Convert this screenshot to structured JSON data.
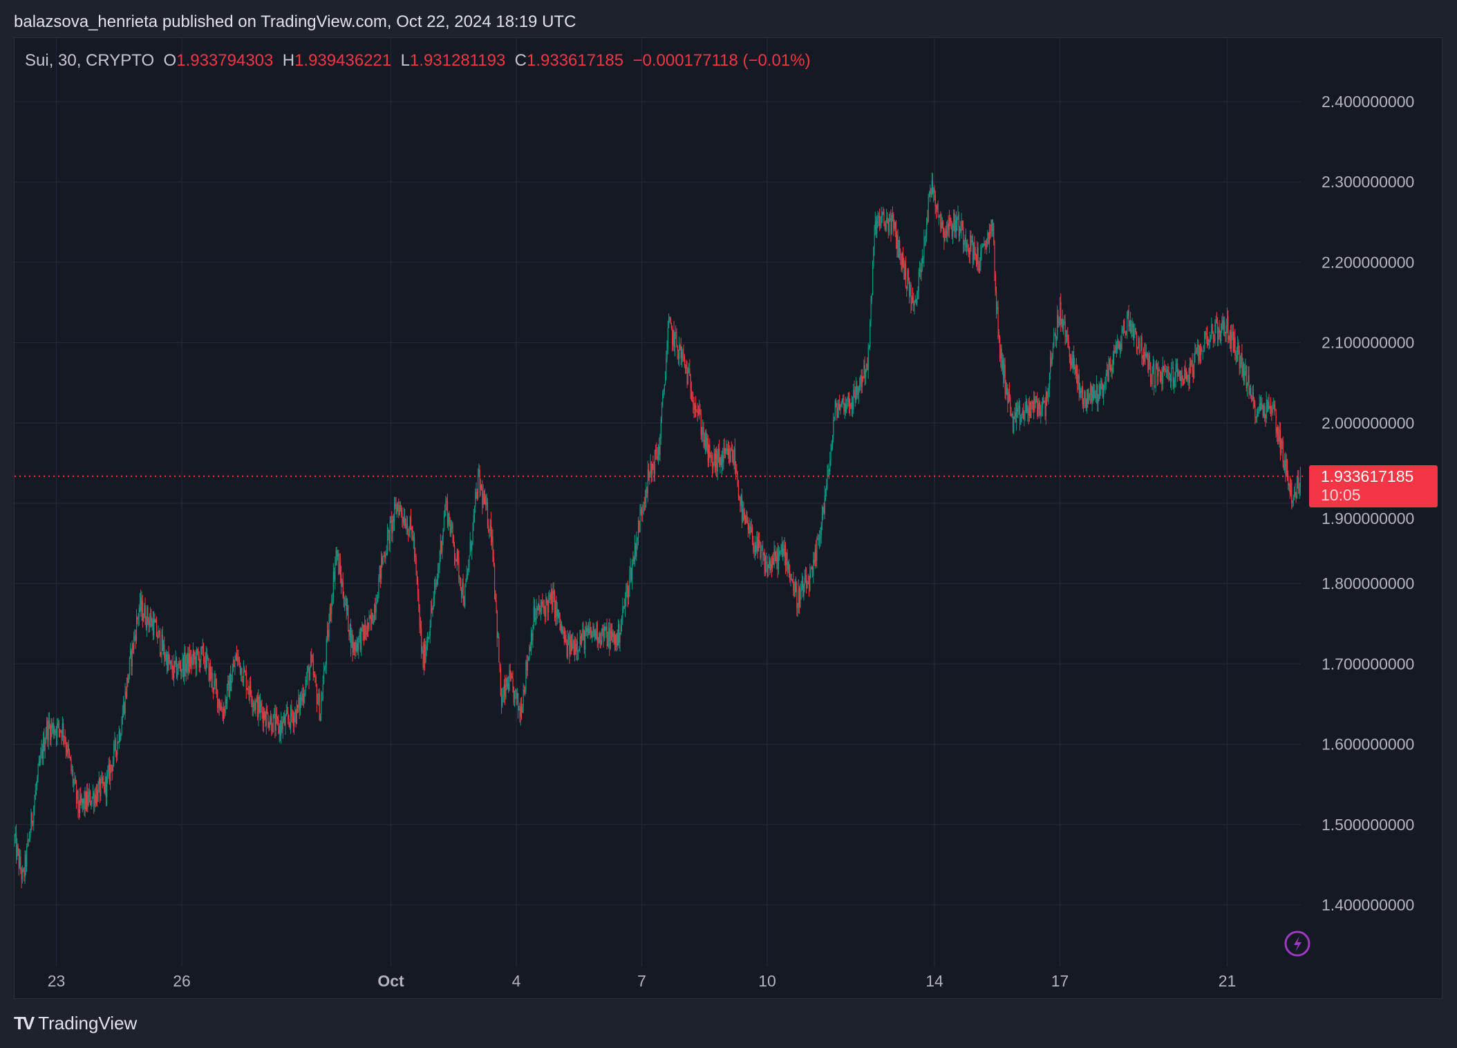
{
  "header": {
    "published": "balazsova_henrieta published on TradingView.com, Oct 22, 2024 18:19 UTC"
  },
  "legend": {
    "symbol": "Sui, 30, CRYPTO",
    "o_label": "O",
    "o": "1.933794303",
    "h_label": "H",
    "h": "1.939436221",
    "l_label": "L",
    "l": "1.931281193",
    "c_label": "C",
    "c": "1.933617185",
    "change": "−0.000177118 (−0.01%)"
  },
  "last_price": {
    "value": "1.933617185",
    "countdown": "10:05"
  },
  "brand": {
    "name": "TradingView"
  },
  "colors": {
    "up": "#089981",
    "down": "#f23645",
    "grid": "#232735",
    "bg": "#151924"
  },
  "chart_data": {
    "type": "candlestick",
    "title": "Sui, 30, CRYPTO",
    "interval_minutes": 30,
    "x_unit": "days since Sep 22, 2024 00:00 UTC",
    "ylim": [
      1.33,
      2.47
    ],
    "y_ticks": [
      "2.400000000",
      "2.300000000",
      "2.200000000",
      "2.100000000",
      "2.000000000",
      "1.900000000",
      "1.800000000",
      "1.700000000",
      "1.600000000",
      "1.500000000",
      "1.400000000"
    ],
    "x_ticks": [
      {
        "day": 1,
        "label": "23"
      },
      {
        "day": 4,
        "label": "26"
      },
      {
        "day": 9,
        "label": "Oct",
        "bold": true
      },
      {
        "day": 12,
        "label": "4"
      },
      {
        "day": 15,
        "label": "7"
      },
      {
        "day": 18,
        "label": "10"
      },
      {
        "day": 22,
        "label": "14"
      },
      {
        "day": 25,
        "label": "17"
      },
      {
        "day": 29,
        "label": "21"
      }
    ],
    "last_price": 1.933617185,
    "approx_close_path": [
      [
        0,
        1.48
      ],
      [
        0.2,
        1.43
      ],
      [
        0.53,
        1.55
      ],
      [
        0.76,
        1.62
      ],
      [
        1.16,
        1.62
      ],
      [
        1.53,
        1.52
      ],
      [
        2.2,
        1.55
      ],
      [
        2.53,
        1.62
      ],
      [
        2.76,
        1.7
      ],
      [
        2.98,
        1.77
      ],
      [
        3.31,
        1.75
      ],
      [
        3.76,
        1.69
      ],
      [
        4.09,
        1.7
      ],
      [
        4.53,
        1.71
      ],
      [
        4.98,
        1.64
      ],
      [
        5.31,
        1.71
      ],
      [
        5.76,
        1.65
      ],
      [
        6.31,
        1.62
      ],
      [
        6.76,
        1.64
      ],
      [
        7.09,
        1.7
      ],
      [
        7.31,
        1.64
      ],
      [
        7.69,
        1.84
      ],
      [
        8.09,
        1.72
      ],
      [
        8.53,
        1.75
      ],
      [
        8.8,
        1.83
      ],
      [
        9.16,
        1.9
      ],
      [
        9.53,
        1.86
      ],
      [
        9.76,
        1.7
      ],
      [
        10.09,
        1.8
      ],
      [
        10.31,
        1.9
      ],
      [
        10.76,
        1.78
      ],
      [
        11.09,
        1.93
      ],
      [
        11.42,
        1.86
      ],
      [
        11.64,
        1.65
      ],
      [
        11.82,
        1.68
      ],
      [
        12.09,
        1.64
      ],
      [
        12.42,
        1.76
      ],
      [
        12.87,
        1.78
      ],
      [
        13.2,
        1.72
      ],
      [
        13.87,
        1.74
      ],
      [
        14.42,
        1.73
      ],
      [
        14.76,
        1.82
      ],
      [
        15.09,
        1.92
      ],
      [
        15.42,
        1.97
      ],
      [
        15.64,
        2.12
      ],
      [
        15.98,
        2.08
      ],
      [
        16.31,
        2.02
      ],
      [
        16.64,
        1.95
      ],
      [
        17.2,
        1.96
      ],
      [
        17.42,
        1.88
      ],
      [
        17.98,
        1.82
      ],
      [
        18.42,
        1.84
      ],
      [
        18.71,
        1.78
      ],
      [
        19.09,
        1.81
      ],
      [
        19.42,
        1.92
      ],
      [
        19.64,
        2.02
      ],
      [
        20.09,
        2.03
      ],
      [
        20.42,
        2.08
      ],
      [
        20.58,
        2.25
      ],
      [
        20.98,
        2.25
      ],
      [
        21.53,
        2.14
      ],
      [
        21.93,
        2.3
      ],
      [
        22.2,
        2.24
      ],
      [
        22.53,
        2.25
      ],
      [
        23.09,
        2.2
      ],
      [
        23.38,
        2.25
      ],
      [
        23.53,
        2.1
      ],
      [
        23.87,
        2.0
      ],
      [
        24.31,
        2.02
      ],
      [
        24.64,
        2.02
      ],
      [
        24.98,
        2.14
      ],
      [
        25.53,
        2.03
      ],
      [
        25.98,
        2.04
      ],
      [
        26.64,
        2.13
      ],
      [
        27.2,
        2.06
      ],
      [
        28.09,
        2.06
      ],
      [
        28.53,
        2.11
      ],
      [
        28.98,
        2.12
      ],
      [
        29.31,
        2.08
      ],
      [
        29.64,
        2.02
      ],
      [
        30.09,
        2.02
      ],
      [
        30.42,
        1.94
      ],
      [
        30.58,
        1.9
      ],
      [
        30.76,
        1.933617185
      ]
    ]
  }
}
